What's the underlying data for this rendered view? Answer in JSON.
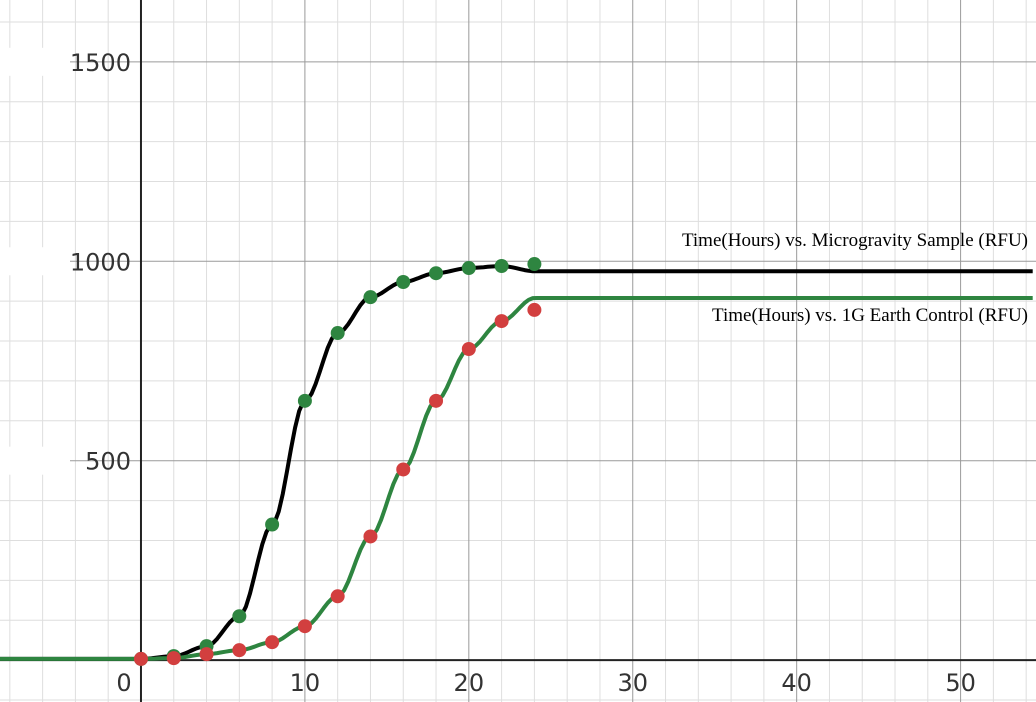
{
  "chart_data": {
    "type": "scatter",
    "xlim": [
      -8.6,
      54.6
    ],
    "ylim": [
      -105,
      1655
    ],
    "grid": true,
    "x_ticks": [
      0,
      10,
      20,
      30,
      40,
      50
    ],
    "y_ticks": [
      500,
      1000,
      1500
    ],
    "x_tick_labels": [
      "0",
      "10",
      "20",
      "30",
      "40",
      "50"
    ],
    "y_tick_labels": [
      "500",
      "1000",
      "1500"
    ],
    "series": [
      {
        "name": "Time(Hours) vs. Microgravity Sample (RFU)",
        "line_color": "#000000",
        "point_color": "#2e8540",
        "x": [
          0,
          2,
          4,
          6,
          8,
          10,
          12,
          14,
          16,
          18,
          20,
          22,
          24
        ],
        "y": [
          3,
          10,
          35,
          110,
          340,
          650,
          820,
          910,
          948,
          970,
          983,
          988,
          993
        ]
      },
      {
        "name": "Time(Hours) vs. 1G Earth Control (RFU)",
        "line_color": "#2e8540",
        "point_color": "#d23f3f",
        "x": [
          0,
          2,
          4,
          6,
          8,
          10,
          12,
          14,
          16,
          18,
          20,
          22,
          24
        ],
        "y": [
          3,
          5,
          15,
          25,
          45,
          85,
          160,
          310,
          478,
          650,
          780,
          850,
          878
        ]
      }
    ]
  }
}
